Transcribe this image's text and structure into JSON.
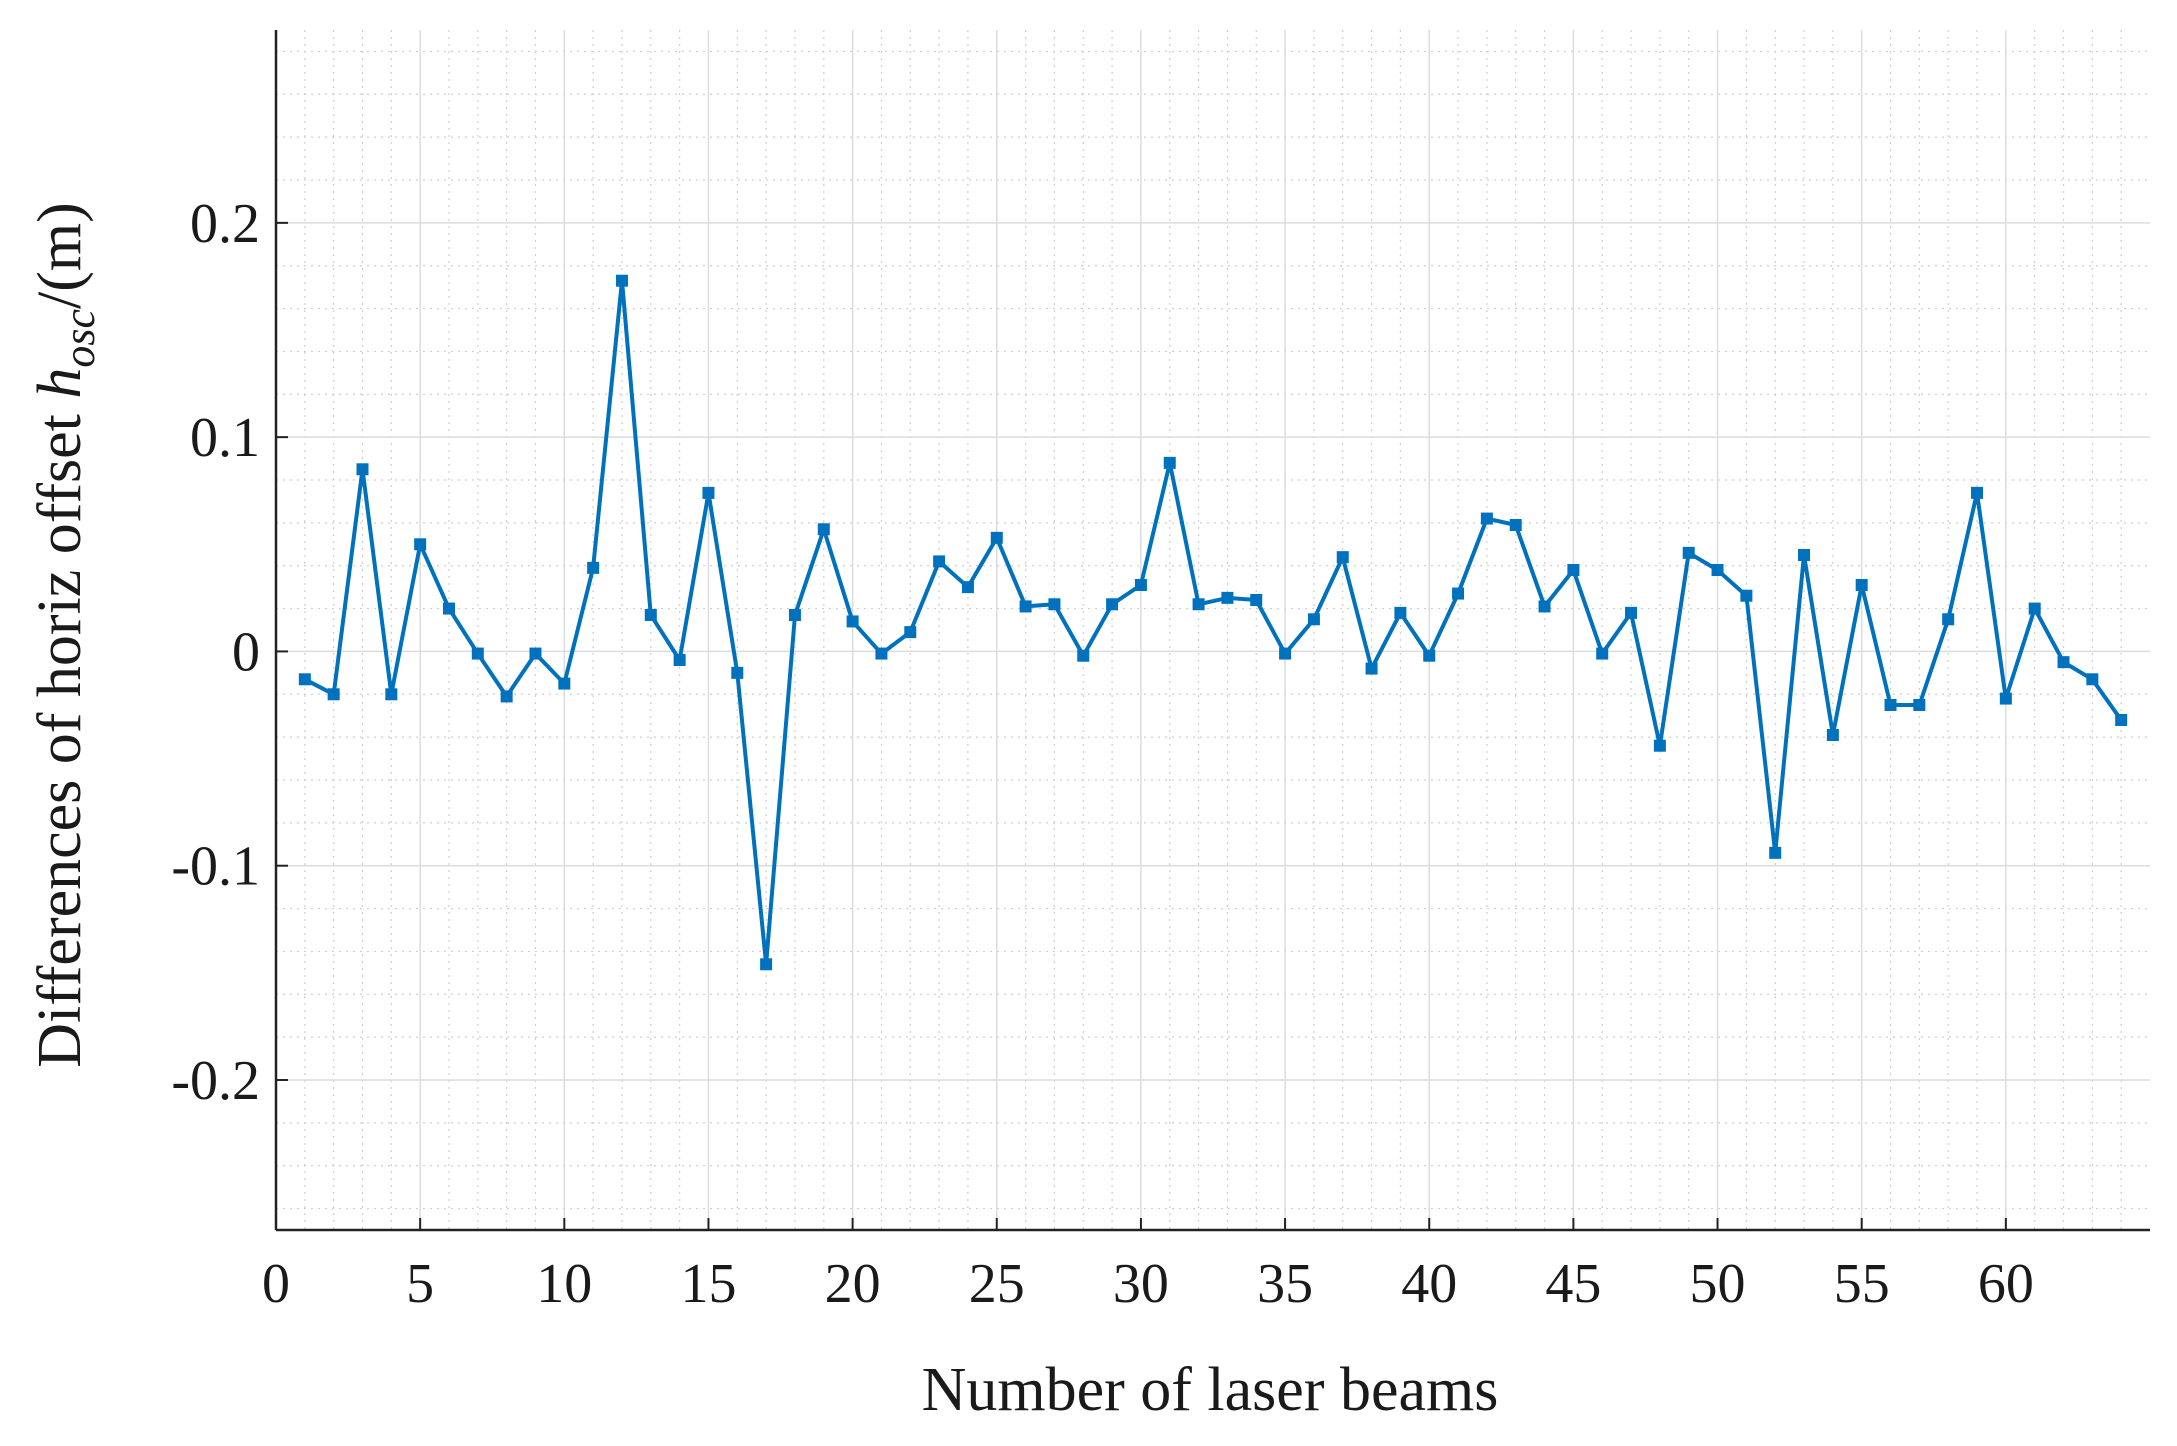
{
  "chart_data": {
    "type": "line",
    "xlabel": "Number of laser beams",
    "ylabel": {
      "prefix": "Differences of horiz offset ",
      "symbol": "h",
      "subscript": "osc",
      "suffix": "/(m)"
    },
    "xlim": [
      0,
      65
    ],
    "ylim": [
      -0.27,
      0.29
    ],
    "xticks": [
      0,
      5,
      10,
      15,
      20,
      25,
      30,
      35,
      40,
      45,
      50,
      55,
      60
    ],
    "yticks": [
      -0.2,
      -0.1,
      0,
      0.1,
      0.2
    ],
    "ytick_labels": [
      "-0.2",
      "-0.1",
      "0",
      "0.1",
      "0.2"
    ],
    "grid": true,
    "minor_grid": true,
    "line_color": "#0072BD",
    "series": [
      {
        "x": [
          1,
          2,
          3,
          4,
          5,
          6,
          7,
          8,
          9,
          10,
          11,
          12,
          13,
          14,
          15,
          16,
          17,
          18,
          19,
          20,
          21,
          22,
          23,
          24,
          25,
          26,
          27,
          28,
          29,
          30,
          31,
          32,
          33,
          34,
          35,
          36,
          37,
          38,
          39,
          40,
          41,
          42,
          43,
          44,
          45,
          46,
          47,
          48,
          49,
          50,
          51,
          52,
          53,
          54,
          55,
          56,
          57,
          58,
          59,
          60,
          61,
          62,
          63,
          64
        ],
        "values": [
          -0.013,
          -0.02,
          0.085,
          -0.02,
          0.05,
          0.02,
          -0.001,
          -0.021,
          -0.001,
          -0.015,
          0.039,
          0.173,
          0.017,
          -0.004,
          0.074,
          -0.01,
          -0.146,
          0.017,
          0.057,
          0.014,
          -0.001,
          0.009,
          0.042,
          0.03,
          0.053,
          0.021,
          0.022,
          -0.002,
          0.022,
          0.031,
          0.088,
          0.022,
          0.025,
          0.024,
          -0.001,
          0.015,
          0.044,
          -0.008,
          0.018,
          -0.002,
          0.027,
          0.062,
          0.059,
          0.021,
          0.038,
          -0.001,
          0.018,
          -0.044,
          0.046,
          0.038,
          0.026,
          -0.094,
          0.045,
          -0.039,
          0.031,
          -0.025,
          -0.025,
          0.015,
          0.074,
          -0.022,
          0.02,
          -0.005,
          -0.013,
          -0.032
        ]
      }
    ]
  }
}
